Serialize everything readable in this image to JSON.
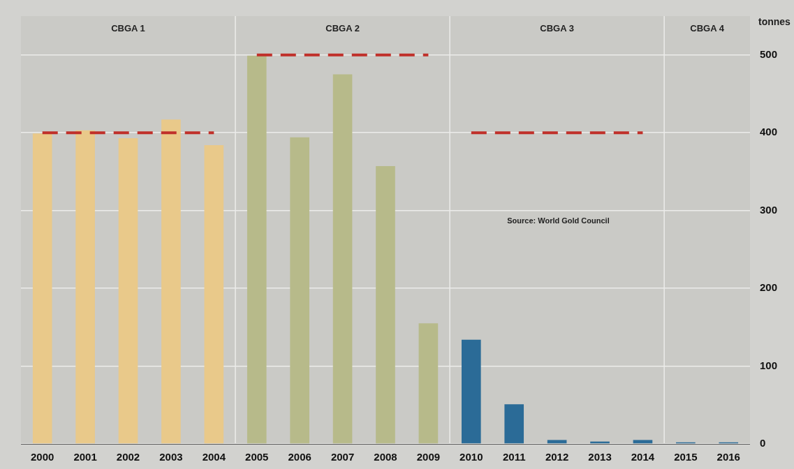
{
  "chart_data": {
    "type": "bar",
    "ylabel": "tonnes",
    "categories": [
      "2000",
      "2001",
      "2002",
      "2003",
      "2004",
      "2005",
      "2006",
      "2007",
      "2008",
      "2009",
      "2010",
      "2011",
      "2012",
      "2013",
      "2014",
      "2015",
      "2016"
    ],
    "series": [
      {
        "colors": [
          "#e9c98a",
          "#e9c98a",
          "#e9c98a",
          "#e9c98a",
          "#e9c98a",
          "#b7ba8a",
          "#b7ba8a",
          "#b7ba8a",
          "#b7ba8a",
          "#b7ba8a",
          "#2b6b97",
          "#2b6b97",
          "#2b6b97",
          "#2b6b97",
          "#2b6b97",
          "#2b6b97",
          "#2b6b97"
        ],
        "values": [
          399,
          403,
          393,
          417,
          384,
          499,
          394,
          475,
          357,
          155,
          134,
          51,
          5,
          3,
          5,
          2,
          2
        ]
      },
      {
        "type": "line",
        "color": "#c0302a",
        "line_style": "dashed",
        "values": [
          400,
          400,
          400,
          400,
          400,
          null,
          null,
          null,
          null,
          null,
          null,
          null,
          null,
          null,
          null,
          null,
          null
        ]
      },
      {
        "type": "line",
        "color": "#c0302a",
        "line_style": "dashed",
        "values": [
          null,
          null,
          null,
          null,
          null,
          500,
          500,
          500,
          500,
          500,
          null,
          null,
          null,
          null,
          null,
          null,
          null
        ]
      },
      {
        "type": "line",
        "color": "#c0302a",
        "line_style": "dashed",
        "values": [
          null,
          null,
          null,
          null,
          null,
          null,
          null,
          null,
          null,
          null,
          400,
          400,
          400,
          400,
          400,
          null,
          null
        ]
      }
    ],
    "bands": [
      {
        "axis": "x",
        "from": "2000",
        "to": "2004",
        "label": "CBGA 1",
        "color": "#cacac6"
      },
      {
        "axis": "x",
        "from": "2005",
        "to": "2009",
        "label": "CBGA 2",
        "color": "#cacac6"
      },
      {
        "axis": "x",
        "from": "2010",
        "to": "2014",
        "label": "CBGA 3",
        "color": "#cacac6"
      },
      {
        "axis": "x",
        "from": "2015",
        "to": "2016",
        "label": "CBGA 4",
        "color": "#cacac6"
      }
    ],
    "annotations": [
      "Source: World Gold Council"
    ],
    "ylim": [
      0,
      550
    ],
    "yticks": [
      0,
      100,
      200,
      300,
      400,
      500
    ],
    "grid": "y",
    "marker": "none",
    "legend": false
  }
}
